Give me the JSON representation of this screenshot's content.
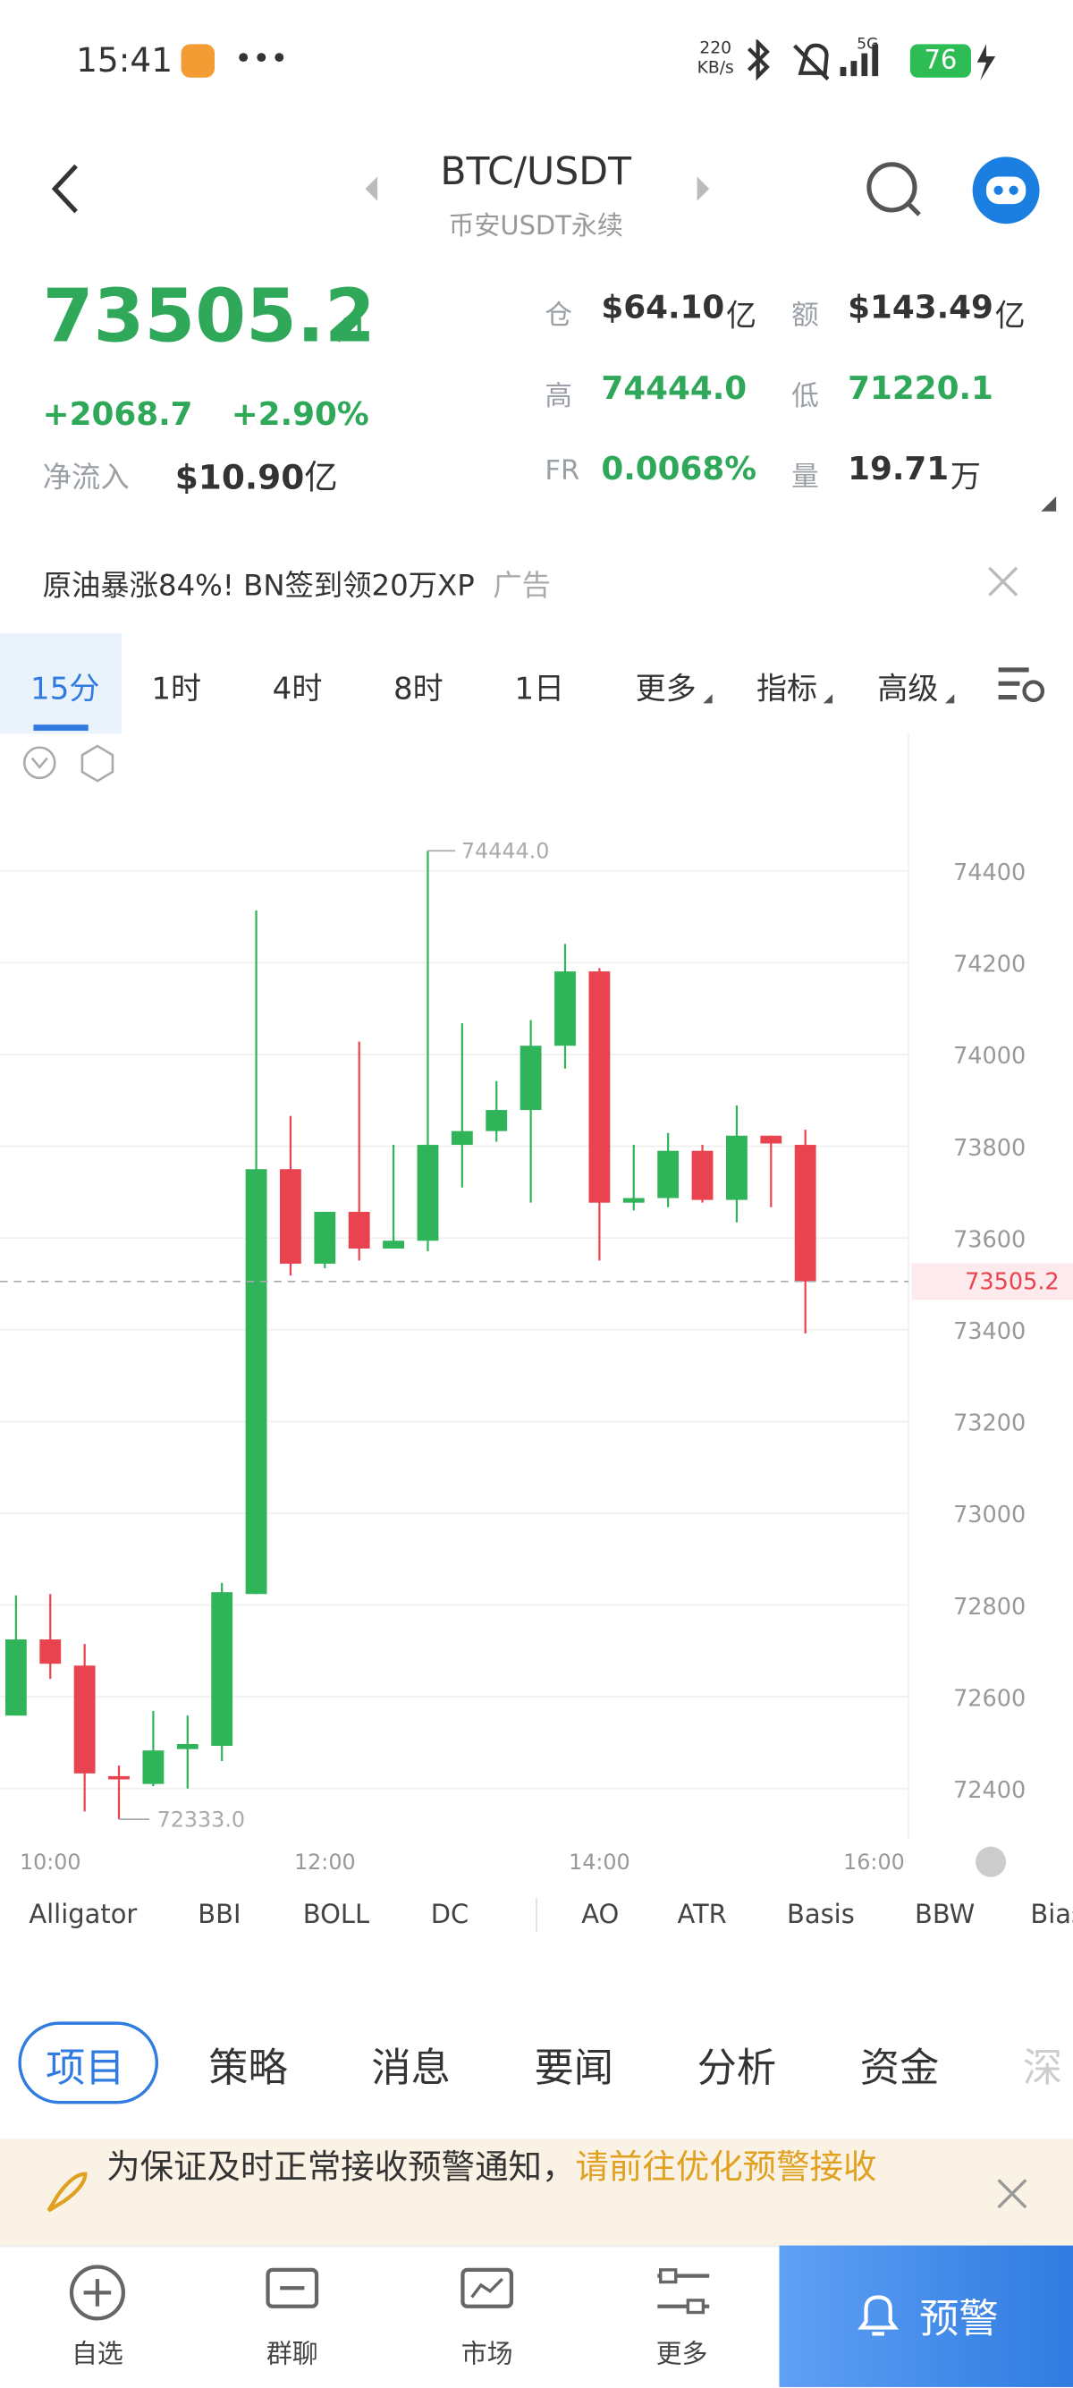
{
  "status_bar": {
    "time": "15:41",
    "speed": "220",
    "speed_unit": "KB/s",
    "network": "5G",
    "battery": "76"
  },
  "header": {
    "pair": "BTC/USDT",
    "exchange": "币安USDT永续"
  },
  "ticker": {
    "price": "73505.2",
    "change": "+2068.7",
    "change_pct": "+2.90%",
    "net_inflow_label": "净流入",
    "net_inflow": "$10.90",
    "net_inflow_unit": "亿",
    "stats": [
      {
        "label": "仓",
        "value": "$64.10",
        "unit": "亿"
      },
      {
        "label": "额",
        "value": "$143.49",
        "unit": "亿"
      },
      {
        "label": "高",
        "value": "74444.0"
      },
      {
        "label": "低",
        "value": "71220.1"
      },
      {
        "label": "FR",
        "value": "0.0068%"
      },
      {
        "label": "量",
        "value": "19.71",
        "unit": "万"
      }
    ]
  },
  "ad": {
    "text": "原油暴涨84%! BN签到领20万XP",
    "tag": "广告"
  },
  "intervals": [
    "15分",
    "1时",
    "4时",
    "8时",
    "1日",
    "更多",
    "指标",
    "高级"
  ],
  "chart_data": {
    "type": "candlestick",
    "up_color": "#2fb45a",
    "down_color": "#e8434f",
    "open": [
      72559,
      72725,
      72668,
      72427,
      72410,
      72486,
      72493,
      72824,
      73750,
      73544,
      73657,
      73577,
      73594,
      73803,
      73833,
      73879,
      74019,
      74181,
      73677,
      73687,
      73790,
      73683,
      73823,
      73803
    ],
    "high": [
      72821,
      72824,
      72715,
      72450,
      72569,
      72559,
      72848,
      74314,
      73866,
      73657,
      74028,
      73803,
      74444,
      74068,
      73942,
      74075,
      74241,
      74188,
      73803,
      73829,
      73803,
      73889,
      73823,
      73836
    ],
    "low": [
      72559,
      72639,
      72350,
      72333,
      72405,
      72400,
      72460,
      72824,
      73518,
      73534,
      73551,
      73577,
      73571,
      73710,
      73810,
      73677,
      73969,
      73551,
      73660,
      73667,
      73677,
      73634,
      73667,
      73392
    ],
    "close": [
      72725,
      72672,
      72433,
      72420,
      72483,
      72497,
      72828,
      73750,
      73544,
      73657,
      73577,
      73594,
      73803,
      73833,
      73879,
      74019,
      74181,
      73677,
      73687,
      73790,
      73683,
      73823,
      73806,
      73505.2
    ],
    "ylim": [
      72290,
      74699
    ],
    "yticks": [
      72400,
      72600,
      72800,
      73000,
      73200,
      73400,
      73600,
      73800,
      74000,
      74200,
      74400
    ],
    "grid": true,
    "xtick_labels": [
      "10:00",
      "12:00",
      "14:00",
      "16:00"
    ],
    "high_marker": {
      "value": 74444,
      "label": "74444.0"
    },
    "low_marker": {
      "value": 72333,
      "label": "72333.0"
    },
    "last_price": {
      "value": 73505.2,
      "label": "73505.2"
    }
  },
  "indicators": [
    "Alligator",
    "BBI",
    "BOLL",
    "DC",
    "AO",
    "ATR",
    "Basis",
    "BBW",
    "Bias"
  ],
  "news_tabs": [
    "项目",
    "策略",
    "消息",
    "要闻",
    "分析",
    "资金",
    "深"
  ],
  "notice": {
    "text": "为保证及时正常接收预警通知，",
    "link": "请前往优化预警接收"
  },
  "nav": [
    "自选",
    "群聊",
    "市场",
    "更多"
  ],
  "alert_button": "预警"
}
